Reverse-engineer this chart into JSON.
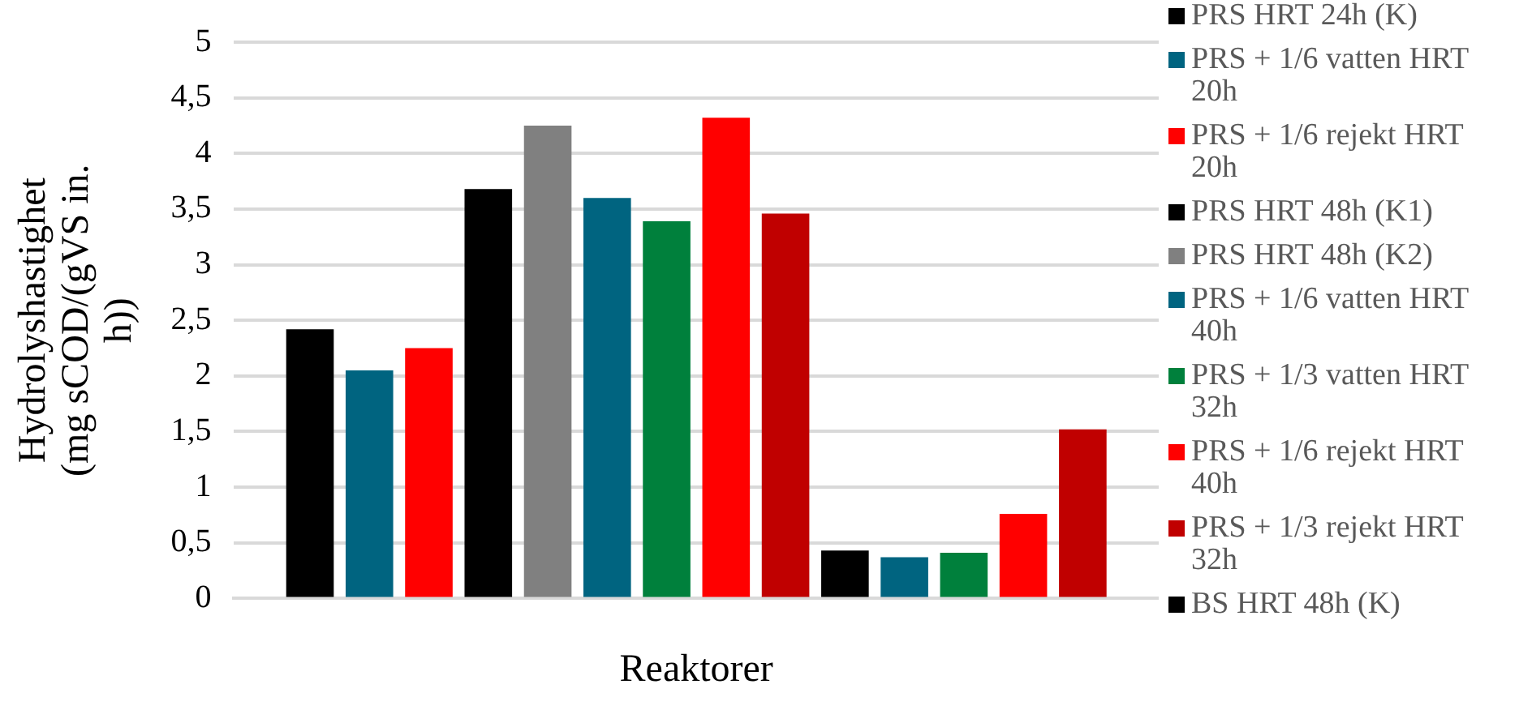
{
  "chart_data": {
    "type": "bar",
    "xlabel": "Reaktorer",
    "ylabel": "Hydrolyshastighet (mg sCOD/(gVS in. h))",
    "categories": [
      null
    ],
    "series": [
      {
        "name": "PRS HRT 24h (K)",
        "color": "#000000",
        "values": [
          2.42
        ]
      },
      {
        "name": "PRS + 1/6 vatten HRT 20h",
        "color": "#006480",
        "values": [
          2.05
        ]
      },
      {
        "name": "PRS + 1/6 rejekt HRT 20h",
        "color": "#ff0000",
        "values": [
          2.25
        ]
      },
      {
        "name": "PRS HRT 48h (K1)",
        "color": "#000000",
        "values": [
          3.68
        ]
      },
      {
        "name": "PRS HRT 48h (K2)",
        "color": "#808080",
        "values": [
          4.25
        ]
      },
      {
        "name": "PRS + 1/6 vatten HRT 40h",
        "color": "#006480",
        "values": [
          3.6
        ]
      },
      {
        "name": "PRS + 1/3 vatten HRT 32h",
        "color": "#00803c",
        "values": [
          3.39
        ]
      },
      {
        "name": "PRS + 1/6 rejekt HRT 40h",
        "color": "#ff0000",
        "values": [
          4.32
        ]
      },
      {
        "name": "PRS + 1/3 rejekt HRT 32h",
        "color": "#c00000",
        "values": [
          3.46
        ]
      },
      {
        "name": "BS HRT 48h (K)",
        "color": "#000000",
        "values": [
          0.43
        ]
      },
      {
        "color": "#006480",
        "values": [
          0.37
        ]
      },
      {
        "color": "#00803c",
        "values": [
          0.41
        ]
      },
      {
        "color": "#ff0000",
        "values": [
          0.76
        ]
      },
      {
        "color": "#c00000",
        "values": [
          1.52
        ]
      }
    ],
    "ylim": [
      0,
      5
    ],
    "yticks": [
      0,
      {
        "value": 0.5,
        "label": "0,5"
      },
      1,
      {
        "value": 1.5,
        "label": "1,5"
      },
      2,
      {
        "value": 2.5,
        "label": "2,5"
      },
      3,
      {
        "value": 3.5,
        "label": "3,5"
      },
      4,
      {
        "value": 4.5,
        "label": "4,5"
      },
      5
    ],
    "grid": "y",
    "legend": "right"
  }
}
